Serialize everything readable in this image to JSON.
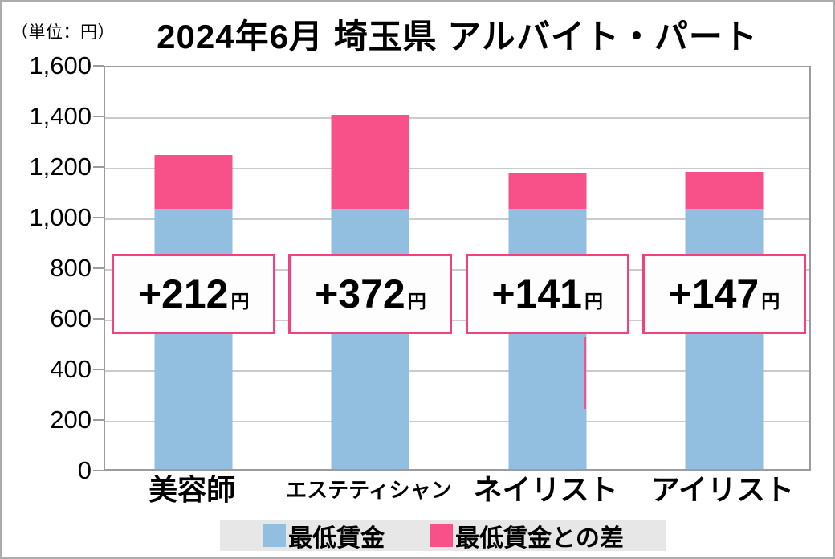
{
  "header": {
    "unit_label": "（単位：円）",
    "title": "2024年6月 埼玉県 アルバイト・パート"
  },
  "chart_data": {
    "type": "bar",
    "subtype": "stacked",
    "title": "2024年6月 埼玉県 アルバイト・パート",
    "unit": "円",
    "categories": [
      "美容師",
      "エステティシャン",
      "ネイリスト",
      "アイリスト"
    ],
    "series": [
      {
        "name": "最低賃金",
        "values": [
          1028,
          1028,
          1028,
          1028
        ]
      },
      {
        "name": "最低賃金との差",
        "values": [
          212,
          372,
          141,
          147
        ]
      }
    ],
    "totals": [
      1240,
      1400,
      1169,
      1175
    ],
    "annotations": [
      {
        "text": "+212",
        "suffix": "円"
      },
      {
        "text": "+372",
        "suffix": "円"
      },
      {
        "text": "+141",
        "suffix": "円"
      },
      {
        "text": "+147",
        "suffix": "円"
      }
    ],
    "ylim": [
      0,
      1600
    ],
    "ytick_step": 200,
    "ytick_labels": [
      "1,600",
      "1,400",
      "1,200",
      "1,000",
      "800",
      "600",
      "400",
      "200",
      "0"
    ],
    "grid": true,
    "legend_position": "bottom",
    "stray_line": {
      "category_index": 2
    }
  },
  "legend": {
    "items": [
      {
        "label": "最低賃金"
      },
      {
        "label": "最低賃金との差"
      }
    ]
  },
  "colors": {
    "bar_blue": "#92BEDF",
    "bar_pink": "#F8518A",
    "box_border": "#F4407E",
    "box_fill": "#FDFDFD",
    "grid": "#CBCBCB",
    "plot_border": "#9C9C9C",
    "tick": "#9C9C9C",
    "legend_bg": "#E7E7E7",
    "text": "#000000"
  }
}
